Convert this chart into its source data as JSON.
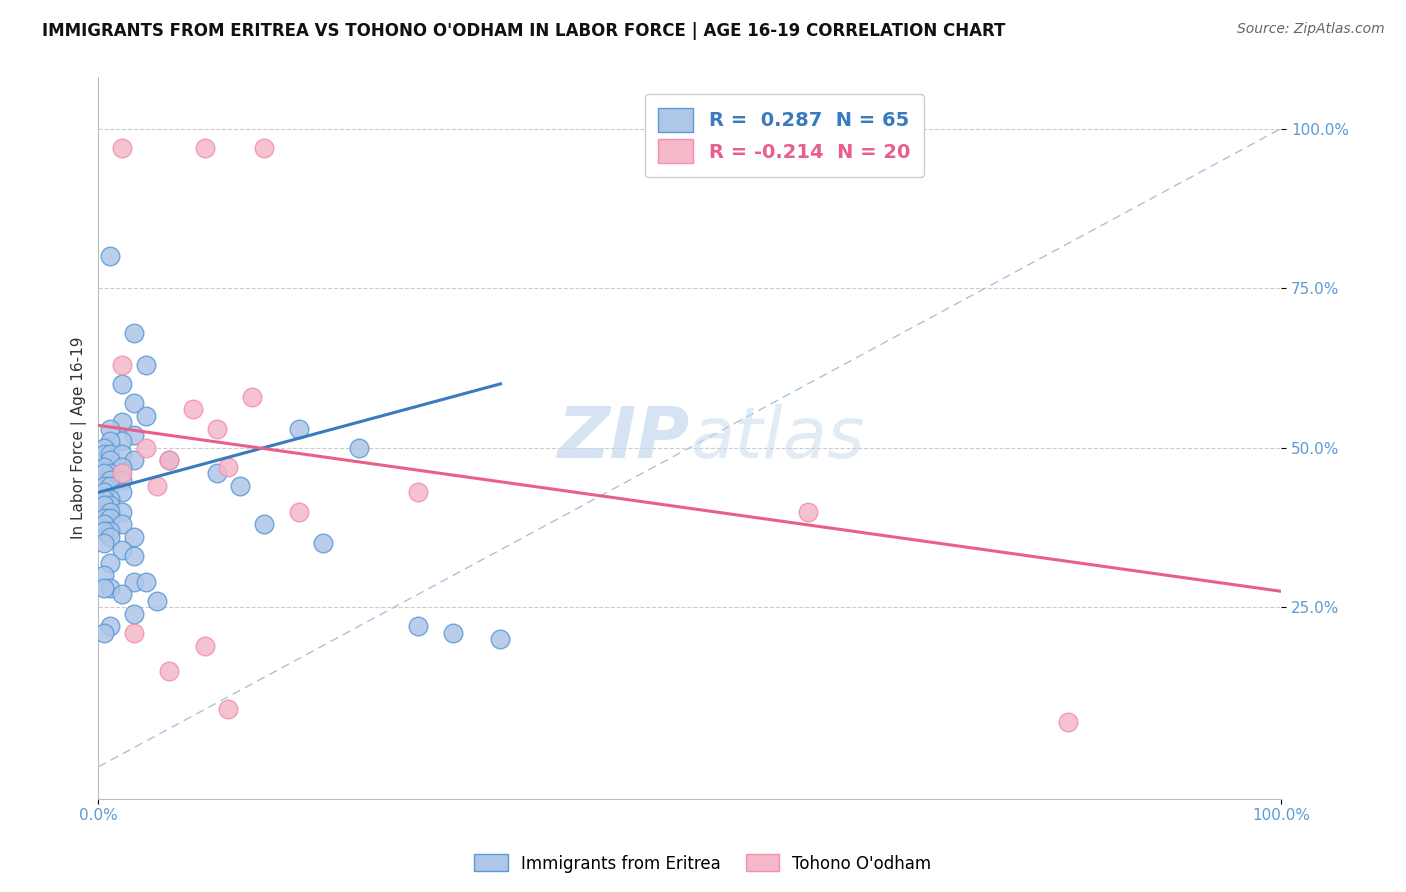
{
  "title": "IMMIGRANTS FROM ERITREA VS TOHONO O'ODHAM IN LABOR FORCE | AGE 16-19 CORRELATION CHART",
  "source": "Source: ZipAtlas.com",
  "ylabel": "In Labor Force | Age 16-19",
  "y_tick_values": [
    0.25,
    0.5,
    0.75,
    1.0
  ],
  "y_tick_labels": [
    "25.0%",
    "50.0%",
    "75.0%",
    "100.0%"
  ],
  "x_min": 0.0,
  "x_max": 1.0,
  "y_min": -0.05,
  "y_max": 1.08,
  "legend_entries": [
    {
      "label_r": "R =  0.287",
      "label_n": "  N = 65",
      "fill": "#aec6e8",
      "edge": "#5b9bd5"
    },
    {
      "label_r": "R = -0.214",
      "label_n": "  N = 20",
      "fill": "#f4b8c8",
      "edge": "#f48fb1"
    }
  ],
  "bottom_legend": [
    "Immigrants from Eritrea",
    "Tohono O'odham"
  ],
  "blue_color": "#3a7abf",
  "pink_color": "#e8608a",
  "blue_fill": "#aec6e8",
  "pink_fill": "#f4b8c8",
  "blue_edge": "#5b9bd5",
  "pink_edge": "#f48fb1",
  "blue_dots": [
    [
      0.01,
      0.8
    ],
    [
      0.03,
      0.68
    ],
    [
      0.04,
      0.63
    ],
    [
      0.02,
      0.6
    ],
    [
      0.03,
      0.57
    ],
    [
      0.04,
      0.55
    ],
    [
      0.02,
      0.54
    ],
    [
      0.01,
      0.53
    ],
    [
      0.03,
      0.52
    ],
    [
      0.02,
      0.51
    ],
    [
      0.01,
      0.51
    ],
    [
      0.005,
      0.5
    ],
    [
      0.005,
      0.49
    ],
    [
      0.01,
      0.49
    ],
    [
      0.02,
      0.49
    ],
    [
      0.03,
      0.48
    ],
    [
      0.01,
      0.48
    ],
    [
      0.005,
      0.47
    ],
    [
      0.02,
      0.47
    ],
    [
      0.01,
      0.46
    ],
    [
      0.005,
      0.46
    ],
    [
      0.01,
      0.45
    ],
    [
      0.02,
      0.45
    ],
    [
      0.005,
      0.44
    ],
    [
      0.01,
      0.44
    ],
    [
      0.02,
      0.43
    ],
    [
      0.005,
      0.43
    ],
    [
      0.01,
      0.42
    ],
    [
      0.005,
      0.42
    ],
    [
      0.01,
      0.41
    ],
    [
      0.005,
      0.41
    ],
    [
      0.02,
      0.4
    ],
    [
      0.01,
      0.4
    ],
    [
      0.005,
      0.39
    ],
    [
      0.01,
      0.39
    ],
    [
      0.005,
      0.38
    ],
    [
      0.02,
      0.38
    ],
    [
      0.01,
      0.37
    ],
    [
      0.005,
      0.37
    ],
    [
      0.03,
      0.36
    ],
    [
      0.01,
      0.36
    ],
    [
      0.005,
      0.35
    ],
    [
      0.02,
      0.34
    ],
    [
      0.03,
      0.33
    ],
    [
      0.01,
      0.32
    ],
    [
      0.005,
      0.3
    ],
    [
      0.03,
      0.29
    ],
    [
      0.04,
      0.29
    ],
    [
      0.01,
      0.28
    ],
    [
      0.005,
      0.28
    ],
    [
      0.02,
      0.27
    ],
    [
      0.05,
      0.26
    ],
    [
      0.03,
      0.24
    ],
    [
      0.01,
      0.22
    ],
    [
      0.005,
      0.21
    ],
    [
      0.06,
      0.48
    ],
    [
      0.1,
      0.46
    ],
    [
      0.12,
      0.44
    ],
    [
      0.17,
      0.53
    ],
    [
      0.22,
      0.5
    ],
    [
      0.14,
      0.38
    ],
    [
      0.19,
      0.35
    ],
    [
      0.27,
      0.22
    ],
    [
      0.3,
      0.21
    ],
    [
      0.34,
      0.2
    ]
  ],
  "pink_dots": [
    [
      0.02,
      0.97
    ],
    [
      0.09,
      0.97
    ],
    [
      0.14,
      0.97
    ],
    [
      0.02,
      0.63
    ],
    [
      0.08,
      0.56
    ],
    [
      0.1,
      0.53
    ],
    [
      0.04,
      0.5
    ],
    [
      0.06,
      0.48
    ],
    [
      0.11,
      0.47
    ],
    [
      0.02,
      0.46
    ],
    [
      0.05,
      0.44
    ],
    [
      0.17,
      0.4
    ],
    [
      0.03,
      0.21
    ],
    [
      0.09,
      0.19
    ],
    [
      0.06,
      0.15
    ],
    [
      0.11,
      0.09
    ],
    [
      0.27,
      0.43
    ],
    [
      0.6,
      0.4
    ],
    [
      0.82,
      0.07
    ],
    [
      0.13,
      0.58
    ]
  ],
  "blue_line": {
    "x0": 0.0,
    "y0": 0.43,
    "x1": 0.34,
    "y1": 0.6
  },
  "pink_line": {
    "x0": 0.0,
    "y0": 0.535,
    "x1": 1.0,
    "y1": 0.275
  },
  "ref_line": {
    "x0": 0.0,
    "y0": 0.0,
    "x1": 1.0,
    "y1": 1.0
  },
  "watermark_zip": "ZIP",
  "watermark_atlas": "atlas",
  "grid_color": "#cccccc",
  "background": "#ffffff",
  "title_fontsize": 12,
  "source_fontsize": 10,
  "axis_label_fontsize": 11,
  "tick_fontsize": 11,
  "legend_fontsize": 14,
  "tick_color": "#5b9bd5"
}
